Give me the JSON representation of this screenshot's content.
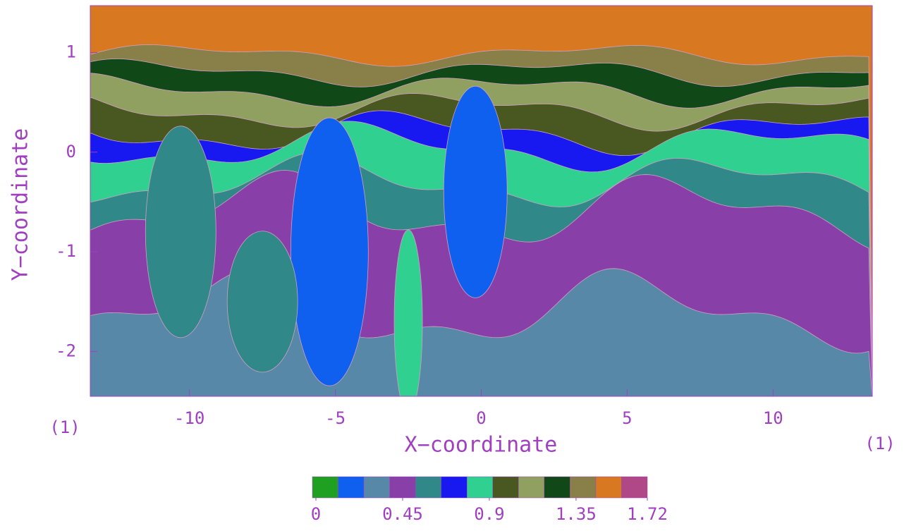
{
  "chart_data": {
    "type": "contour",
    "xlabel": "X−coordinate",
    "ylabel": "Y−coordinate",
    "x_unit_label_left": "(1)",
    "x_unit_label_right": "(1)",
    "xlim": [
      -13.4,
      13.4
    ],
    "xticks": [
      -10,
      -5,
      0,
      5,
      10
    ],
    "ylim": [
      -2.45,
      1.47
    ],
    "yticks": [
      -2,
      -1,
      0,
      1
    ],
    "colorbar": {
      "lim": [
        0,
        1.72
      ],
      "ticks": [
        0,
        0.45,
        0.9,
        1.35,
        1.72
      ],
      "colors": [
        "#20a020",
        "#1060f0",
        "#5888a8",
        "#8840a8",
        "#308888",
        "#1818f0",
        "#30d090",
        "#485820",
        "#90a060",
        "#104818",
        "#888048",
        "#d87820",
        "#b04888"
      ]
    }
  }
}
